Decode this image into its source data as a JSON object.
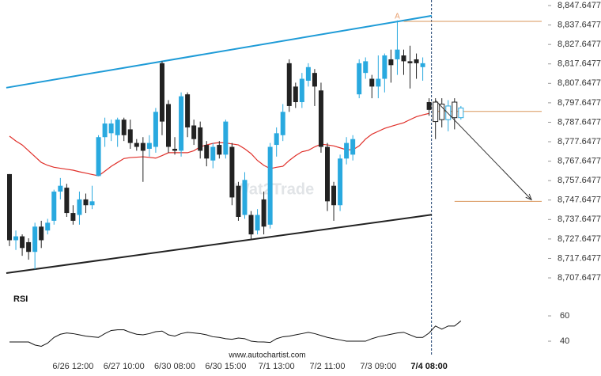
{
  "chart_data": {
    "type": "candlestick",
    "up_color": "#29a9df",
    "down_color": "#222222",
    "categories": [
      null,
      null,
      null,
      null,
      null,
      null,
      null,
      null,
      null,
      null,
      "6/26 12:00",
      null,
      null,
      null,
      null,
      null,
      null,
      null,
      "6/27 10:00",
      null,
      null,
      null,
      null,
      null,
      null,
      null,
      "6/30 08:00",
      null,
      null,
      null,
      null,
      null,
      null,
      null,
      "6/30 15:00",
      null,
      null,
      null,
      null,
      null,
      null,
      null,
      "7/1 13:00",
      null,
      null,
      null,
      null,
      null,
      null,
      null,
      "7/2 11:00",
      null,
      null,
      null,
      null,
      null,
      null,
      null,
      "7/3 09:00",
      null,
      null,
      null,
      null,
      null,
      null,
      null,
      "7/4 08:00",
      null,
      null,
      null,
      null,
      null
    ],
    "open": [
      8761,
      8727,
      8729,
      8726,
      8721,
      8734,
      8732,
      8737,
      8752,
      8754,
      8741,
      8740,
      8748,
      8745,
      8760,
      8780,
      8782,
      8781,
      8789,
      8784,
      8777,
      8777,
      8774,
      8775,
      8818,
      8797,
      8774,
      8773,
      8802,
      8786,
      8785,
      8776,
      8768,
      8776,
      8771,
      8775,
      8755,
      8740,
      8740,
      8732,
      8748,
      8735,
      8776,
      8781,
      8818,
      8806,
      8798,
      8809,
      8813,
      8804,
      8775,
      8755,
      8745,
      8769,
      8771,
      8802,
      8813,
      8810,
      8806,
      8810,
      8820,
      8820,
      8822,
      8819,
      8820,
      8816,
      8798,
      8798,
      8797,
      8789,
      8798,
      8790
    ],
    "high": [
      8761,
      8732,
      8730,
      8728,
      8736,
      8737,
      8738,
      8753,
      8759,
      8756,
      8745,
      8752,
      8751,
      8755,
      8781,
      8790,
      8789,
      8790,
      8790,
      8789,
      8779,
      8780,
      8781,
      8795,
      8819,
      8799,
      8780,
      8803,
      8803,
      8789,
      8788,
      8778,
      8777,
      8778,
      8789,
      8777,
      8757,
      8762,
      8742,
      8743,
      8752,
      8777,
      8785,
      8797,
      8820,
      8808,
      8813,
      8818,
      8815,
      8808,
      8777,
      8757,
      8771,
      8780,
      8781,
      8820,
      8821,
      8812,
      8822,
      8823,
      8825,
      8840,
      8825,
      8827,
      8823,
      8821,
      8800,
      8800,
      8800,
      8799,
      8800,
      8796
    ],
    "low": [
      8724,
      8722,
      8719,
      8717,
      8712,
      8723,
      8730,
      8735,
      8748,
      8739,
      8735,
      8735,
      8741,
      8743,
      8760,
      8775,
      8778,
      8775,
      8778,
      8774,
      8773,
      8757,
      8770,
      8772,
      8781,
      8772,
      8771,
      8770,
      8780,
      8776,
      8769,
      8765,
      8764,
      8769,
      8769,
      8745,
      8737,
      8738,
      8727,
      8730,
      8730,
      8733,
      8770,
      8778,
      8793,
      8795,
      8795,
      8806,
      8796,
      8772,
      8742,
      8737,
      8742,
      8766,
      8768,
      8800,
      8810,
      8800,
      8800,
      8803,
      8808,
      8812,
      8812,
      8805,
      8810,
      8809,
      8791,
      8779,
      8785,
      8783,
      8784,
      8789
    ],
    "close": [
      8727,
      8729,
      8723,
      8721,
      8734,
      8727,
      8736,
      8752,
      8755,
      8741,
      8737,
      8748,
      8745,
      8747,
      8780,
      8787,
      8787,
      8789,
      8781,
      8777,
      8775,
      8773,
      8777,
      8793,
      8788,
      8775,
      8773,
      8801,
      8785,
      8779,
      8773,
      8769,
      8775,
      8771,
      8788,
      8749,
      8739,
      8758,
      8730,
      8740,
      8734,
      8775,
      8782,
      8793,
      8796,
      8798,
      8810,
      8816,
      8806,
      8775,
      8747,
      8745,
      8769,
      8777,
      8779,
      8818,
      8819,
      8806,
      8810,
      8822,
      8817,
      8825,
      8819,
      8818,
      8818,
      8818,
      8794,
      8788,
      8789,
      8796,
      8790,
      8795
    ],
    "moving_average": {
      "color": "#e0302a",
      "values": [
        8780.5,
        8778,
        8776,
        8773,
        8770,
        8767,
        8765.5,
        8764.5,
        8764,
        8763.5,
        8763,
        8762.2,
        8761.5,
        8760.8,
        8760.1,
        8762.5,
        8765,
        8767,
        8769,
        8769.5,
        8769.7,
        8769.9,
        8769.6,
        8769.2,
        8770.5,
        8772,
        8772,
        8772,
        8772,
        8773,
        8775,
        8776,
        8776.8,
        8777.2,
        8777,
        8776.5,
        8776,
        8774,
        8771.5,
        8768,
        8765.5,
        8763.8,
        8764.5,
        8765,
        8768,
        8770.5,
        8772.5,
        8773.2,
        8775,
        8776.4,
        8776,
        8775.5,
        8774.5,
        8773.5,
        8773.5,
        8775.5,
        8779,
        8781.5,
        8783,
        8784.5,
        8785.5,
        8786.5,
        8787.4,
        8789,
        8790.5,
        8791.4,
        8792.2
      ]
    },
    "trendlines": [
      {
        "color": "#1e9bd7",
        "x": [
          -0.5,
          66.4
        ],
        "values": [
          8805.4,
          8842.4
        ]
      },
      {
        "color": "#222222",
        "x": [
          -0.5,
          66.4
        ],
        "values": [
          8710.1,
          8740.1
        ]
      }
    ],
    "levels": [
      {
        "color": "#d9955a",
        "from": 62,
        "value": 8839.5
      },
      {
        "color": "#d9955a",
        "from": 67,
        "value": 8793.2
      },
      {
        "color": "#d9955a",
        "from": 70,
        "value": 8747
      }
    ],
    "peak_label": "A",
    "arrow": {
      "color": "#333333",
      "x": [
        67,
        82.1
      ],
      "values": [
        8798.9,
        8747.8
      ]
    },
    "ylim": [
      8704,
      8850.5
    ],
    "yticks": [
      {
        "value": 8847.6477,
        "label": "8,847.6477"
      },
      {
        "value": 8837.6477,
        "label": "8,837.6477"
      },
      {
        "value": 8827.6477,
        "label": "8,827.6477"
      },
      {
        "value": 8817.6477,
        "label": "8,817.6477"
      },
      {
        "value": 8807.6477,
        "label": "8,807.6477"
      },
      {
        "value": 8797.6477,
        "label": "8,797.6477"
      },
      {
        "value": 8787.6477,
        "label": "8,787.6477"
      },
      {
        "value": 8777.6477,
        "label": "8,777.6477"
      },
      {
        "value": 8767.6477,
        "label": "8,767.6477"
      },
      {
        "value": 8757.6477,
        "label": "8,757.6477"
      },
      {
        "value": 8747.6477,
        "label": "8,747.6477"
      },
      {
        "value": 8737.6477,
        "label": "8,737.6477"
      },
      {
        "value": 8727.6477,
        "label": "8,727.6477"
      },
      {
        "value": 8717.6477,
        "label": "8,717.6477"
      },
      {
        "value": 8707.6477,
        "label": "8,707.6477"
      }
    ],
    "watermark": "Wat2Trade",
    "rsi": {
      "title": "RSI",
      "color": "#111111",
      "ylim": [
        29.4,
        79.4
      ],
      "yticks": [
        60,
        40
      ],
      "values": [
        39.4,
        39.4,
        39.4,
        39.4,
        37,
        36,
        38.5,
        43,
        45.5,
        46.5,
        46,
        45,
        44,
        43.5,
        43,
        46,
        48.5,
        49,
        49,
        47,
        45.5,
        45,
        46,
        47.5,
        48,
        45,
        44,
        46,
        47,
        46.5,
        46,
        45,
        43.5,
        43,
        42,
        41.5,
        42.5,
        42,
        40,
        39.5,
        39.4,
        39,
        42,
        43.5,
        44,
        45,
        46,
        47,
        46,
        44.5,
        43,
        42,
        41,
        40,
        40,
        40,
        40,
        42,
        43.5,
        44.5,
        45.5,
        46.5,
        47,
        45,
        43,
        43,
        46.5,
        52,
        49.5,
        52,
        52,
        56
      ]
    },
    "source": "www.autochartist.com"
  }
}
